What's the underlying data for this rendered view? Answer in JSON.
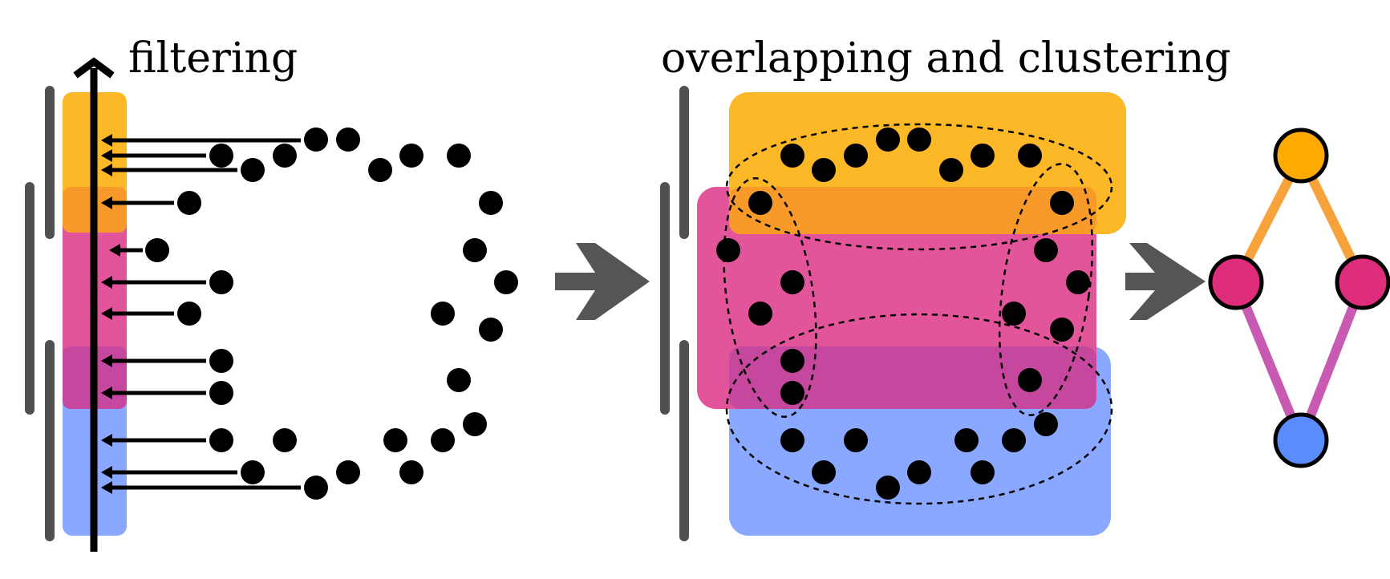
{
  "labels": {
    "filtering": "filtering",
    "overlapping": "overlapping and clustering"
  },
  "colors": {
    "orange": "#FDB827",
    "orange_overlap": "#F79A2A",
    "pink": "#E2559A",
    "purple_overlap": "#C6489E",
    "blue": "#8AA8FF",
    "interval_bar": "#505050",
    "arrow_gray": "#555555",
    "dot": "#000000",
    "node_orange": "#FFAA00",
    "node_pink": "#DE2D7D",
    "node_blue": "#5B8CFF",
    "edge_orange": "#F7A23A",
    "edge_purple": "#C85AB2"
  },
  "graph": {
    "nodes": [
      {
        "id": "top",
        "color": "orange"
      },
      {
        "id": "left",
        "color": "pink"
      },
      {
        "id": "right",
        "color": "pink"
      },
      {
        "id": "bottom",
        "color": "blue"
      }
    ],
    "edges": [
      {
        "from": "top",
        "to": "left",
        "color": "orange"
      },
      {
        "from": "top",
        "to": "right",
        "color": "orange"
      },
      {
        "from": "left",
        "to": "bottom",
        "color": "purple"
      },
      {
        "from": "right",
        "to": "bottom",
        "color": "purple"
      }
    ]
  }
}
